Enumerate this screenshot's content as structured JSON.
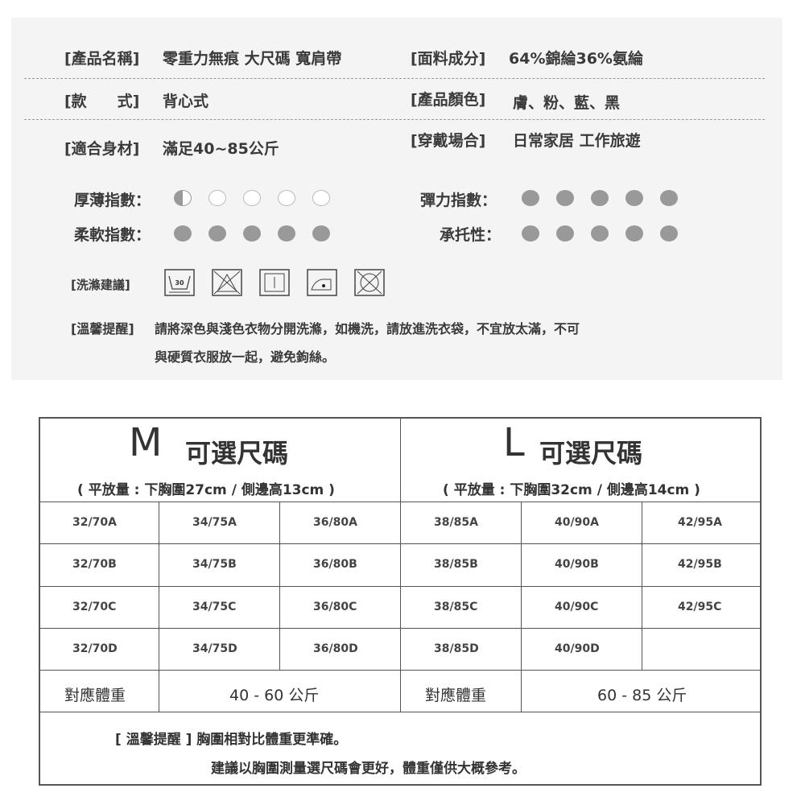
{
  "info": {
    "name_label": "[產品名稱]",
    "name_value": "零重力無痕 大尺碼 寬肩帶",
    "fabric_label": "[面料成分]",
    "fabric_value": "64%錦綸36%氨綸",
    "style_label": "[款　　式]",
    "style_value": "背心式",
    "color_label": "[產品顏色]",
    "color_value": "膚、粉、藍、黑",
    "fit_label": "[適合身材]",
    "fit_value": "滿足40~85公斤",
    "occasion_label": "[穿戴場合]",
    "occasion_value": "日常家居 工作旅遊"
  },
  "ratings": [
    {
      "label": "厚薄指數：",
      "value": 0.5,
      "max": 5
    },
    {
      "label": "柔軟指數：",
      "value": 5,
      "max": 5
    },
    {
      "label": "彈力指數：",
      "value": 5,
      "max": 5
    },
    {
      "label": "承托性：",
      "value": 5,
      "max": 5
    }
  ],
  "care": {
    "label": "[洗滌建議]",
    "icons": [
      "wash-30-icon",
      "no-bleach-icon",
      "dry-flat-icon",
      "iron-low-icon",
      "no-tumble-dry-icon"
    ],
    "wash_temp": "30"
  },
  "reminder": {
    "label": "[溫馨提醒]",
    "line1": "請將深色與淺色衣物分開洗滌，如機洗，請放進洗衣袋，不宜放太滿，不可",
    "line2": "與硬質衣服放一起，避免鉤絲。"
  },
  "sizes": {
    "m": {
      "letter": "M",
      "title": "可選尺碼",
      "sub": "( 平放量 : 下胸圍27cm / 側邊高13cm )",
      "rows": [
        [
          "32/70A",
          "34/75A",
          "36/80A"
        ],
        [
          "32/70B",
          "34/75B",
          "36/80B"
        ],
        [
          "32/70C",
          "34/75C",
          "36/80C"
        ],
        [
          "32/70D",
          "34/75D",
          "36/80D"
        ]
      ],
      "weight_label": "對應體重",
      "weight_value": "40 - 60 公斤"
    },
    "l": {
      "letter": "L",
      "title": "可選尺碼",
      "sub": "( 平放量 : 下胸圍32cm / 側邊高14cm )",
      "rows": [
        [
          "38/85A",
          "40/90A",
          "42/95A"
        ],
        [
          "38/85B",
          "40/90B",
          "42/95B"
        ],
        [
          "38/85C",
          "40/90C",
          "42/95C"
        ],
        [
          "38/85D",
          "40/90D",
          ""
        ]
      ],
      "weight_label": "對應體重",
      "weight_value": "60 - 85 公斤"
    },
    "note1": "[ 溫馨提醒 ] 胸圍相對比體重更準確。",
    "note2": "建議以胸圍測量選尺碼會更好，體重僅供大概參考。"
  },
  "colors": {
    "panel": "#f4f4f4",
    "dot": "#999999",
    "border": "#555555"
  }
}
